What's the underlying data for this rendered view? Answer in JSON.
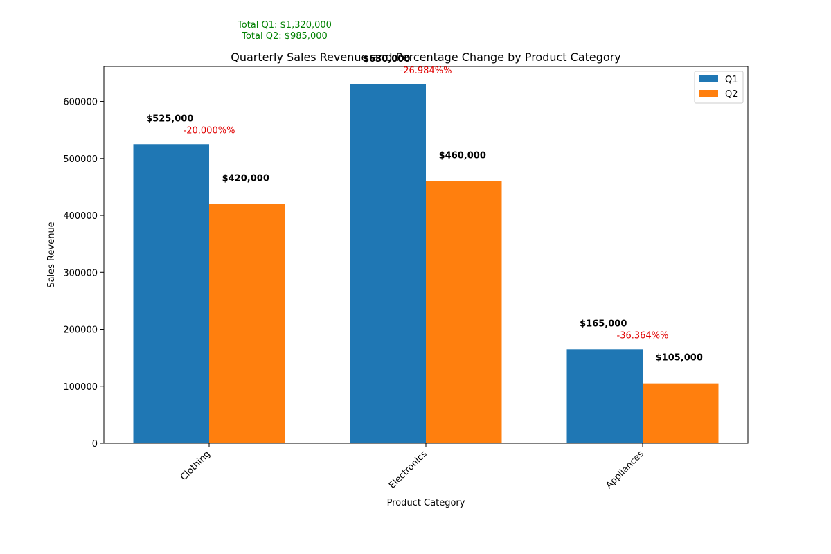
{
  "chart_data": {
    "type": "bar",
    "title": "Quarterly Sales Revenue and Percentage Change by Product Category",
    "xlabel": "Product Category",
    "ylabel": "Sales Revenue",
    "categories": [
      "Clothing",
      "Electronics",
      "Appliances"
    ],
    "series": [
      {
        "name": "Q1",
        "values": [
          525000,
          630000,
          165000
        ],
        "color": "#1f77b4"
      },
      {
        "name": "Q2",
        "values": [
          420000,
          460000,
          105000
        ],
        "color": "#ff7f0e"
      }
    ],
    "value_labels": {
      "Q1": [
        "$525,000",
        "$630,000",
        "$165,000"
      ],
      "Q2": [
        "$420,000",
        "$460,000",
        "$105,000"
      ]
    },
    "percent_change_labels": [
      "-20.000%%",
      "-26.984%%",
      "-36.364%%"
    ],
    "totals": [
      "Total Q1: $1,320,000",
      "Total Q2: $985,000"
    ],
    "ylim": [
      0,
      661500
    ],
    "yticks": [
      0,
      100000,
      200000,
      300000,
      400000,
      500000,
      600000
    ],
    "ytick_labels": [
      "0",
      "100000",
      "200000",
      "300000",
      "400000",
      "500000",
      "600000"
    ],
    "legend_position": "top-right",
    "grid": false,
    "colors": {
      "percent_change": "#e00000",
      "totals": "#008000"
    }
  }
}
